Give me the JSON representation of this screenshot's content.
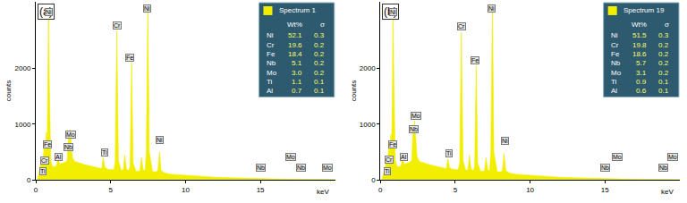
{
  "chart_data": [
    {
      "type": "area",
      "title": "(a)",
      "x_label": "keV",
      "y_label": "counts",
      "xlim": [
        0,
        20
      ],
      "ylim": [
        0,
        3200
      ],
      "xticks": [
        0,
        5,
        10,
        15
      ],
      "yticks": [
        0,
        1000,
        2000
      ],
      "grid": false,
      "x": [
        0.1,
        0.2,
        0.3,
        0.4,
        0.45,
        0.5,
        0.57,
        0.63,
        0.7,
        0.76,
        0.8,
        0.85,
        0.9,
        0.95,
        1.0,
        1.1,
        1.2,
        1.3,
        1.4,
        1.49,
        1.58,
        1.7,
        1.8,
        1.9,
        2.0,
        2.1,
        2.17,
        2.23,
        2.29,
        2.36,
        2.45,
        2.6,
        2.8,
        3.0,
        3.3,
        3.6,
        3.9,
        4.2,
        4.4,
        4.51,
        4.62,
        4.8,
        5.0,
        5.2,
        5.3,
        5.41,
        5.52,
        5.7,
        5.85,
        5.95,
        6.05,
        6.2,
        6.3,
        6.4,
        6.5,
        6.7,
        6.95,
        7.06,
        7.17,
        7.3,
        7.38,
        7.48,
        7.58,
        7.8,
        8.0,
        8.15,
        8.26,
        8.37,
        8.6,
        9.0,
        9.5,
        10,
        11,
        12,
        13,
        14,
        15,
        16,
        17,
        18,
        19,
        20
      ],
      "series": [
        {
          "name": "Spectrum 1",
          "color": "#f2ee00",
          "values": [
            0,
            100,
            250,
            320,
            420,
            380,
            650,
            500,
            850,
            700,
            1500,
            3150,
            1800,
            700,
            350,
            250,
            230,
            240,
            260,
            420,
            280,
            290,
            300,
            310,
            320,
            350,
            750,
            800,
            900,
            700,
            400,
            330,
            310,
            290,
            270,
            250,
            230,
            210,
            200,
            400,
            220,
            190,
            180,
            180,
            300,
            2680,
            350,
            170,
            180,
            450,
            200,
            160,
            250,
            2110,
            300,
            150,
            160,
            400,
            180,
            160,
            500,
            3150,
            500,
            150,
            140,
            160,
            500,
            170,
            120,
            100,
            90,
            80,
            60,
            45,
            35,
            25,
            20,
            15,
            12,
            10,
            8,
            5
          ]
        }
      ],
      "annotations": [
        {
          "text": "Ni",
          "x": 0.85,
          "y": 2950
        },
        {
          "text": "Fe",
          "x": 0.8,
          "y": 560
        },
        {
          "text": "Cr",
          "x": 0.6,
          "y": 270
        },
        {
          "text": "Ti",
          "x": 0.45,
          "y": 80
        },
        {
          "text": "Al",
          "x": 1.55,
          "y": 330
        },
        {
          "text": "Nb",
          "x": 2.2,
          "y": 520
        },
        {
          "text": "Mo",
          "x": 2.35,
          "y": 740
        },
        {
          "text": "Ti",
          "x": 4.6,
          "y": 420
        },
        {
          "text": "Cr",
          "x": 5.41,
          "y": 2700
        },
        {
          "text": "Fe",
          "x": 6.3,
          "y": 2130
        },
        {
          "text": "Ni",
          "x": 7.45,
          "y": 3000
        },
        {
          "text": "Ni",
          "x": 8.3,
          "y": 640
        },
        {
          "text": "Nb",
          "x": 15.0,
          "y": 150
        },
        {
          "text": "Mo",
          "x": 17.0,
          "y": 330
        },
        {
          "text": "Nb",
          "x": 17.7,
          "y": 150
        },
        {
          "text": "Mo",
          "x": 19.5,
          "y": 150
        }
      ],
      "table": {
        "columns": [
          "Wt%",
          "σ"
        ],
        "rows": [
          [
            "Ni",
            "52.1",
            "0.3"
          ],
          [
            "Cr",
            "19.6",
            "0.2"
          ],
          [
            "Fe",
            "18.4",
            "0.2"
          ],
          [
            "Nb",
            "5.1",
            "0.2"
          ],
          [
            "Mo",
            "3.0",
            "0.2"
          ],
          [
            "Ti",
            "1.1",
            "0.1"
          ],
          [
            "Al",
            "0.7",
            "0.1"
          ]
        ]
      }
    },
    {
      "type": "area",
      "title": "(b)",
      "x_label": "keV",
      "y_label": "counts",
      "xlim": [
        0,
        20
      ],
      "ylim": [
        0,
        3200
      ],
      "xticks": [
        0,
        5,
        10,
        15
      ],
      "yticks": [
        0,
        1000,
        2000
      ],
      "grid": false,
      "x": [
        0.1,
        0.2,
        0.3,
        0.4,
        0.45,
        0.5,
        0.57,
        0.63,
        0.7,
        0.76,
        0.8,
        0.85,
        0.9,
        0.95,
        1.0,
        1.1,
        1.2,
        1.3,
        1.4,
        1.49,
        1.58,
        1.7,
        1.8,
        1.9,
        2.0,
        2.1,
        2.17,
        2.23,
        2.29,
        2.36,
        2.45,
        2.6,
        2.8,
        3.0,
        3.3,
        3.6,
        3.9,
        4.2,
        4.4,
        4.51,
        4.62,
        4.8,
        5.0,
        5.2,
        5.3,
        5.41,
        5.52,
        5.7,
        5.85,
        5.95,
        6.05,
        6.2,
        6.3,
        6.4,
        6.5,
        6.7,
        6.95,
        7.06,
        7.17,
        7.3,
        7.38,
        7.48,
        7.58,
        7.8,
        8.0,
        8.15,
        8.26,
        8.37,
        8.6,
        9.0,
        9.5,
        10,
        11,
        12,
        13,
        14,
        15,
        16,
        17,
        18,
        19,
        20
      ],
      "series": [
        {
          "name": "Spectrum 19",
          "color": "#f2ee00",
          "values": [
            0,
            100,
            240,
            320,
            420,
            380,
            620,
            500,
            820,
            700,
            1500,
            3150,
            1800,
            700,
            350,
            250,
            230,
            240,
            260,
            410,
            280,
            290,
            300,
            310,
            320,
            360,
            820,
            900,
            1060,
            760,
            420,
            330,
            310,
            290,
            270,
            250,
            230,
            210,
            200,
            380,
            220,
            190,
            180,
            180,
            300,
            2650,
            350,
            170,
            180,
            440,
            200,
            160,
            250,
            2050,
            300,
            150,
            160,
            400,
            180,
            160,
            500,
            3150,
            500,
            150,
            140,
            160,
            480,
            170,
            120,
            100,
            90,
            80,
            60,
            45,
            35,
            25,
            20,
            15,
            12,
            10,
            8,
            5
          ]
        }
      ],
      "annotations": [
        {
          "text": "Ni",
          "x": 0.85,
          "y": 2950
        },
        {
          "text": "Fe",
          "x": 0.8,
          "y": 560
        },
        {
          "text": "Cr",
          "x": 0.6,
          "y": 290
        },
        {
          "text": "Ti",
          "x": 0.45,
          "y": 80
        },
        {
          "text": "Al",
          "x": 1.55,
          "y": 330
        },
        {
          "text": "Nb",
          "x": 2.2,
          "y": 840
        },
        {
          "text": "Mo",
          "x": 2.4,
          "y": 1080
        },
        {
          "text": "Ti",
          "x": 4.6,
          "y": 400
        },
        {
          "text": "Cr",
          "x": 5.41,
          "y": 2680
        },
        {
          "text": "Fe",
          "x": 6.3,
          "y": 2080
        },
        {
          "text": "Ni",
          "x": 7.45,
          "y": 3000
        },
        {
          "text": "Ni",
          "x": 8.3,
          "y": 620
        },
        {
          "text": "Nb",
          "x": 15.0,
          "y": 150
        },
        {
          "text": "Mo",
          "x": 15.8,
          "y": 330
        },
        {
          "text": "Nb",
          "x": 18.9,
          "y": 150
        },
        {
          "text": "Mo",
          "x": 19.5,
          "y": 330
        }
      ],
      "table": {
        "columns": [
          "Wt%",
          "σ"
        ],
        "rows": [
          [
            "Ni",
            "51.5",
            "0.3"
          ],
          [
            "Cr",
            "19.8",
            "0.2"
          ],
          [
            "Fe",
            "18.6",
            "0.2"
          ],
          [
            "Nb",
            "5.7",
            "0.2"
          ],
          [
            "Mo",
            "3.1",
            "0.2"
          ],
          [
            "Ti",
            "0.9",
            "0.1"
          ],
          [
            "Al",
            "0.6",
            "0.1"
          ]
        ]
      }
    }
  ]
}
